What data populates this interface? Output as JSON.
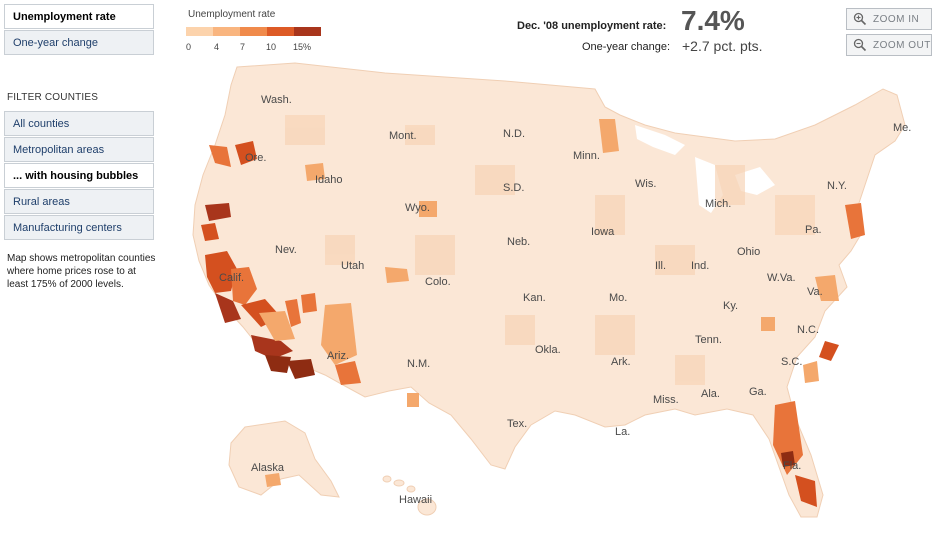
{
  "tabs": [
    {
      "label": "Unemployment rate",
      "active": true
    },
    {
      "label": "One-year change",
      "active": false
    }
  ],
  "filter": {
    "title": "FILTER COUNTIES",
    "items": [
      {
        "label": "All counties",
        "active": false
      },
      {
        "label": "Metropolitan areas",
        "active": false
      },
      {
        "label": "... with housing bubbles",
        "active": true
      },
      {
        "label": "Rural areas",
        "active": false
      },
      {
        "label": "Manufacturing centers",
        "active": false
      }
    ],
    "note": "Map shows metropolitan counties where home prices rose to at least 175% of 2000 levels."
  },
  "legend": {
    "title": "Unemployment rate",
    "ticks": [
      "0",
      "4",
      "7",
      "10",
      "15%"
    ],
    "colors": [
      "#fcd3ac",
      "#f9b57f",
      "#f08a4b",
      "#dd5a26",
      "#a8351c"
    ]
  },
  "stats": {
    "rate_label": "Dec. '08 unemployment rate:",
    "rate_value": "7.4%",
    "change_label": "One-year change:",
    "change_value": "+2.7 pct. pts."
  },
  "zoom": {
    "in_label": "ZOOM IN",
    "out_label": "ZOOM OUT"
  },
  "map": {
    "state_labels": [
      "Wash.",
      "Ore.",
      "Idaho",
      "Mont.",
      "Wyo.",
      "N.D.",
      "S.D.",
      "Minn.",
      "Wis.",
      "Mich.",
      "N.Y.",
      "Me.",
      "Pa.",
      "Ohio",
      "Ind.",
      "Ill.",
      "Iowa",
      "Neb.",
      "Utah",
      "Nev.",
      "Calif.",
      "Colo.",
      "Kan.",
      "Mo.",
      "Ky.",
      "W.Va.",
      "Va.",
      "N.C.",
      "Tenn.",
      "S.C.",
      "Ga.",
      "Ala.",
      "Miss.",
      "Ark.",
      "Okla.",
      "Tex.",
      "La.",
      "N.M.",
      "Ariz.",
      "Fla.",
      "Alaska",
      "Hawaii"
    ],
    "colors": {
      "base": "#fbe7d6",
      "light": "#f7d2b3",
      "mid": "#f4a86c",
      "high": "#e8743a",
      "higher": "#d4501f",
      "highest": "#8e2c12",
      "border": "#ffffff"
    }
  }
}
